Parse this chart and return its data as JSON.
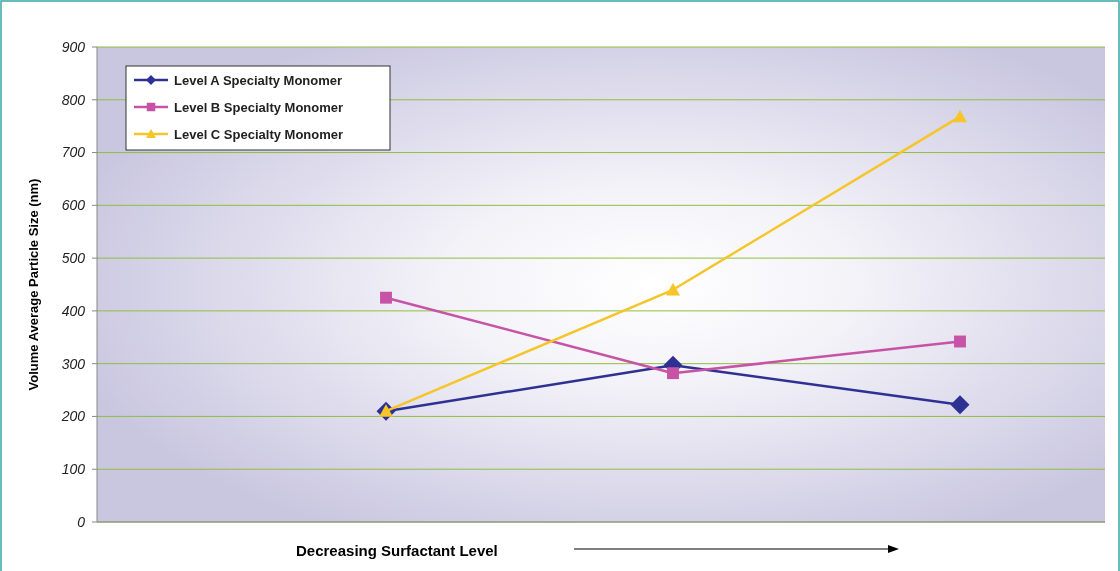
{
  "chart_data": {
    "type": "line",
    "xlabel": "Decreasing Surfactant Level",
    "ylabel": "Volume Average Particle Size (nm)",
    "categories": [
      null,
      null,
      null
    ],
    "series": [
      {
        "name": "Level A Specialty Monomer",
        "color": "#2e3192",
        "marker": "diamond",
        "values": [
          210,
          297,
          222
        ]
      },
      {
        "name": "Level B Specialty Monomer",
        "color": "#c653a6",
        "marker": "square",
        "values": [
          425,
          282,
          342
        ]
      },
      {
        "name": "Level C Specialty Monomer",
        "color": "#f5c52a",
        "marker": "triangle",
        "values": [
          210,
          440,
          768
        ]
      }
    ],
    "ylim": [
      0,
      900
    ],
    "yticks": [
      0,
      100,
      200,
      300,
      400,
      500,
      600,
      700,
      800,
      900
    ],
    "grid": "y",
    "legend": "top left"
  }
}
